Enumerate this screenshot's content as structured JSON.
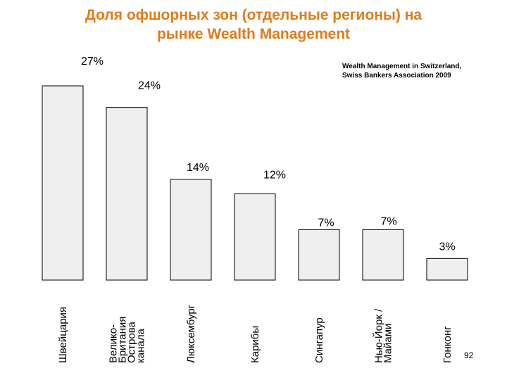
{
  "title_line1": "Доля офшорных зон (отдельные регионы) на",
  "title_line2": "рынке Wealth Management",
  "source_line1": "Wealth Management in Switzerland,",
  "source_line2": "Swiss Bankers Association 2009",
  "page_number": "92",
  "colors": {
    "title": "#e07b1a",
    "bar_fill": "#efefef",
    "bar_stroke": "#000000"
  },
  "chart_data": {
    "type": "bar",
    "title": "Доля офшорных зон (отдельные регионы) на рынке Wealth Management",
    "categories": [
      "Швейцария",
      "Велико-\nБритания\nОстрова\nканала",
      "Люксембург",
      "Карибы",
      "Сингапур",
      "Нью-Йорк /\nМайами",
      "Гонконг"
    ],
    "values": [
      27,
      24,
      14,
      12,
      7,
      7,
      3
    ],
    "data_labels": [
      "27%",
      "24%",
      "14%",
      "12%",
      "7%",
      "7%",
      "3%"
    ],
    "unit": "%",
    "ylim": [
      0,
      27
    ],
    "grid": false,
    "legend": "none"
  }
}
